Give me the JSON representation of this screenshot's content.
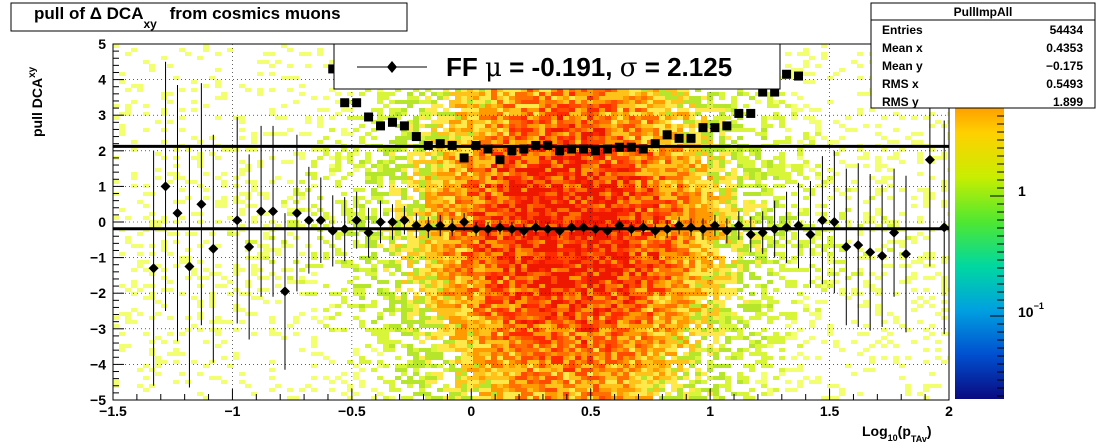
{
  "title": {
    "prefix": "pull of Δ DCA",
    "subscript": "xy",
    "suffix": " from cosmics muons"
  },
  "stats_box": {
    "title": "PullImpAll",
    "rows": [
      {
        "label": "Entries",
        "value": "54434"
      },
      {
        "label": "Mean x",
        "value": "0.4353"
      },
      {
        "label": "Mean y",
        "value": "−0.175"
      },
      {
        "label": "RMS x",
        "value": "0.5493"
      },
      {
        "label": "RMS y",
        "value": "1.899"
      }
    ]
  },
  "legend": {
    "prefix": "FF ",
    "mu_symbol": "μ",
    "mu_text": " = -0.191, ",
    "sigma_symbol": "σ",
    "sigma_text": " =   2.125"
  },
  "colorbar": {
    "labels": [
      {
        "text": "1",
        "exp": ""
      },
      {
        "text": "10",
        "exp": "−1"
      }
    ],
    "colors": [
      "#ff1a00",
      "#ff7a00",
      "#ffd000",
      "#c8ee00",
      "#50e830",
      "#00d8a0",
      "#00a0e0",
      "#0050d0",
      "#0a0a80"
    ]
  },
  "chart_data": {
    "type": "heatmap",
    "xlabel": {
      "main": "Log",
      "sub1": "10",
      "mid": "(p",
      "sub2": "TAv",
      "end": ")"
    },
    "ylabel": {
      "main": "pull DCA",
      "sub": "xy"
    },
    "xlim": [
      -1.5,
      2
    ],
    "ylim": [
      -5,
      5
    ],
    "x_ticks": [
      "−1.5",
      "−1",
      "−0.5",
      "0",
      "0.5",
      "1",
      "1.5",
      "2"
    ],
    "x_tick_values": [
      -1.5,
      -1,
      -0.5,
      0,
      0.5,
      1,
      1.5,
      2
    ],
    "y_ticks": [
      "−5",
      "−4",
      "−3",
      "−2",
      "−1",
      "0",
      "1",
      "2",
      "3",
      "4",
      "5"
    ],
    "y_tick_values": [
      -5,
      -4,
      -3,
      -2,
      -1,
      0,
      1,
      2,
      3,
      4,
      5
    ],
    "reference_lines": [
      2.125,
      -0.191
    ],
    "mean_points": [
      {
        "x": -1.33,
        "y": -1.3,
        "err": 3.3
      },
      {
        "x": -1.28,
        "y": 1.0,
        "err": 3.5
      },
      {
        "x": -1.23,
        "y": 0.25,
        "err": 3.6
      },
      {
        "x": -1.18,
        "y": -1.25,
        "err": 3.4
      },
      {
        "x": -1.13,
        "y": 0.5,
        "err": 3.4
      },
      {
        "x": -1.08,
        "y": -0.75,
        "err": 3.2
      },
      {
        "x": -0.98,
        "y": 0.05,
        "err": 2.9
      },
      {
        "x": -0.93,
        "y": -0.7,
        "err": 2.6
      },
      {
        "x": -0.88,
        "y": 0.3,
        "err": 2.4
      },
      {
        "x": -0.83,
        "y": 0.3,
        "err": 2.4
      },
      {
        "x": -0.78,
        "y": -1.95,
        "err": 2.2
      },
      {
        "x": -0.73,
        "y": 0.25,
        "err": 2.2
      },
      {
        "x": -0.68,
        "y": 0.05,
        "err": 1.5
      },
      {
        "x": -0.63,
        "y": 0.05,
        "err": 1.2
      },
      {
        "x": -0.58,
        "y": -0.25,
        "err": 1.0
      },
      {
        "x": -0.53,
        "y": -0.2,
        "err": 0.9
      },
      {
        "x": -0.48,
        "y": 0.05,
        "err": 0.8
      },
      {
        "x": -0.43,
        "y": -0.3,
        "err": 0.7
      },
      {
        "x": -0.38,
        "y": 0.0,
        "err": 0.6
      },
      {
        "x": -0.33,
        "y": 0.0,
        "err": 0.5
      },
      {
        "x": -0.28,
        "y": 0.05,
        "err": 0.4
      },
      {
        "x": -0.23,
        "y": -0.1,
        "err": 0.35
      },
      {
        "x": -0.18,
        "y": -0.15,
        "err": 0.3
      },
      {
        "x": -0.13,
        "y": -0.1,
        "err": 0.3
      },
      {
        "x": -0.08,
        "y": -0.15,
        "err": 0.25
      },
      {
        "x": -0.03,
        "y": 0.0,
        "err": 0.25
      },
      {
        "x": 0.02,
        "y": -0.2,
        "err": 0.2
      },
      {
        "x": 0.07,
        "y": -0.2,
        "err": 0.2
      },
      {
        "x": 0.12,
        "y": -0.15,
        "err": 0.2
      },
      {
        "x": 0.17,
        "y": -0.2,
        "err": 0.2
      },
      {
        "x": 0.22,
        "y": -0.25,
        "err": 0.2
      },
      {
        "x": 0.27,
        "y": -0.15,
        "err": 0.2
      },
      {
        "x": 0.32,
        "y": -0.2,
        "err": 0.2
      },
      {
        "x": 0.37,
        "y": -0.25,
        "err": 0.2
      },
      {
        "x": 0.42,
        "y": -0.15,
        "err": 0.2
      },
      {
        "x": 0.47,
        "y": -0.15,
        "err": 0.2
      },
      {
        "x": 0.52,
        "y": -0.2,
        "err": 0.2
      },
      {
        "x": 0.57,
        "y": -0.25,
        "err": 0.2
      },
      {
        "x": 0.62,
        "y": -0.1,
        "err": 0.2
      },
      {
        "x": 0.67,
        "y": -0.2,
        "err": 0.2
      },
      {
        "x": 0.72,
        "y": -0.15,
        "err": 0.2
      },
      {
        "x": 0.77,
        "y": -0.25,
        "err": 0.2
      },
      {
        "x": 0.82,
        "y": -0.2,
        "err": 0.25
      },
      {
        "x": 0.87,
        "y": -0.1,
        "err": 0.25
      },
      {
        "x": 0.92,
        "y": -0.15,
        "err": 0.25
      },
      {
        "x": 0.97,
        "y": -0.2,
        "err": 0.3
      },
      {
        "x": 1.02,
        "y": -0.1,
        "err": 0.3
      },
      {
        "x": 1.07,
        "y": -0.25,
        "err": 0.35
      },
      {
        "x": 1.12,
        "y": -0.1,
        "err": 0.4
      },
      {
        "x": 1.17,
        "y": -0.35,
        "err": 0.5
      },
      {
        "x": 1.22,
        "y": -0.3,
        "err": 0.6
      },
      {
        "x": 1.27,
        "y": -0.2,
        "err": 0.8
      },
      {
        "x": 1.32,
        "y": -0.15,
        "err": 1.0
      },
      {
        "x": 1.37,
        "y": -0.1,
        "err": 1.2
      },
      {
        "x": 1.42,
        "y": -0.35,
        "err": 1.5
      },
      {
        "x": 1.47,
        "y": 0.05,
        "err": 1.8
      },
      {
        "x": 1.52,
        "y": 0.0,
        "err": 2.0
      },
      {
        "x": 1.57,
        "y": -0.7,
        "err": 2.2
      },
      {
        "x": 1.62,
        "y": -0.65,
        "err": 2.3
      },
      {
        "x": 1.67,
        "y": -0.85,
        "err": 2.2
      },
      {
        "x": 1.72,
        "y": -0.95,
        "err": 2.0
      },
      {
        "x": 1.77,
        "y": -0.3,
        "err": 1.8
      },
      {
        "x": 1.82,
        "y": -0.9,
        "err": 2.2
      },
      {
        "x": 1.92,
        "y": 1.75,
        "err": 3.0
      },
      {
        "x": 1.98,
        "y": -0.15,
        "err": 3.0
      }
    ],
    "rms_points": [
      {
        "x": -0.58,
        "y": 4.3
      },
      {
        "x": -0.53,
        "y": 3.35
      },
      {
        "x": -0.48,
        "y": 3.35
      },
      {
        "x": -0.43,
        "y": 2.95
      },
      {
        "x": -0.38,
        "y": 2.7
      },
      {
        "x": -0.33,
        "y": 2.8
      },
      {
        "x": -0.28,
        "y": 2.7
      },
      {
        "x": -0.23,
        "y": 2.4
      },
      {
        "x": -0.18,
        "y": 2.15
      },
      {
        "x": -0.13,
        "y": 2.2
      },
      {
        "x": -0.08,
        "y": 2.15
      },
      {
        "x": -0.03,
        "y": 1.8
      },
      {
        "x": 0.02,
        "y": 2.15
      },
      {
        "x": 0.07,
        "y": 2.05
      },
      {
        "x": 0.12,
        "y": 1.75
      },
      {
        "x": 0.17,
        "y": 2.0
      },
      {
        "x": 0.22,
        "y": 2.05
      },
      {
        "x": 0.27,
        "y": 2.15
      },
      {
        "x": 0.32,
        "y": 2.15
      },
      {
        "x": 0.37,
        "y": 2.0
      },
      {
        "x": 0.42,
        "y": 2.05
      },
      {
        "x": 0.47,
        "y": 2.05
      },
      {
        "x": 0.52,
        "y": 2.0
      },
      {
        "x": 0.57,
        "y": 2.05
      },
      {
        "x": 0.62,
        "y": 2.1
      },
      {
        "x": 0.67,
        "y": 2.1
      },
      {
        "x": 0.72,
        "y": 2.05
      },
      {
        "x": 0.77,
        "y": 2.2
      },
      {
        "x": 0.82,
        "y": 2.45
      },
      {
        "x": 0.87,
        "y": 2.35
      },
      {
        "x": 0.92,
        "y": 2.35
      },
      {
        "x": 0.97,
        "y": 2.65
      },
      {
        "x": 1.02,
        "y": 2.65
      },
      {
        "x": 1.07,
        "y": 2.7
      },
      {
        "x": 1.12,
        "y": 3.05
      },
      {
        "x": 1.17,
        "y": 3.05
      },
      {
        "x": 1.22,
        "y": 3.65
      },
      {
        "x": 1.27,
        "y": 3.65
      },
      {
        "x": 1.32,
        "y": 4.15
      },
      {
        "x": 1.37,
        "y": 4.1
      }
    ]
  }
}
